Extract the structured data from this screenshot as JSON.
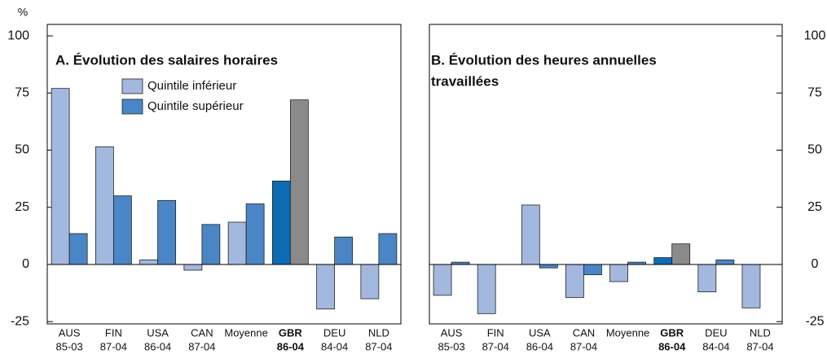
{
  "chart_data": [
    {
      "type": "bar",
      "title": [
        "A. Évolution des salaires horaires"
      ],
      "y_label": "%",
      "axis_side": "left",
      "legend": true,
      "categories": [
        "AUS",
        "FIN",
        "USA",
        "CAN",
        "Moyenne",
        "GBR",
        "DEU",
        "NLD"
      ],
      "periods": [
        "85-03",
        "87-04",
        "86-04",
        "87-04",
        null,
        "86-04",
        "84-04",
        "87-04"
      ],
      "highlight": {
        "category": "GBR",
        "colors": [
          "#0d6bb3",
          "#8a8a8a"
        ]
      },
      "series": [
        {
          "name": "Quintile inférieur",
          "color": "#a3b8de",
          "values": [
            77,
            51.5,
            2,
            -2.5,
            18.5,
            36.5,
            -19.5,
            -15
          ]
        },
        {
          "name": "Quintile supérieur",
          "color": "#4a86c6",
          "values": [
            13.5,
            30,
            28,
            17.5,
            26.5,
            72,
            12,
            13.5
          ]
        }
      ],
      "ylim": [
        -26,
        105
      ],
      "yticks": [
        -25,
        0,
        25,
        50,
        75,
        100
      ]
    },
    {
      "type": "bar",
      "title": [
        "B. Évolution des heures annuelles",
        "travaillées"
      ],
      "axis_side": "right",
      "legend": false,
      "categories": [
        "AUS",
        "FIN",
        "USA",
        "CAN",
        "Moyenne",
        "GBR",
        "DEU",
        "NLD"
      ],
      "periods": [
        "85-03",
        "87-04",
        "86-04",
        "87-04",
        null,
        "86-04",
        "84-04",
        "87-04"
      ],
      "highlight": {
        "category": "GBR",
        "colors": [
          "#0d6bb3",
          "#8a8a8a"
        ]
      },
      "series": [
        {
          "color": "#a3b8de",
          "values": [
            -13.5,
            -21.5,
            26,
            -14.5,
            -7.5,
            3,
            -12,
            -19
          ]
        },
        {
          "color": "#4a86c6",
          "values": [
            1,
            0,
            -1.5,
            -4.5,
            1,
            9,
            2,
            0
          ]
        }
      ],
      "ylim": [
        -26,
        105
      ],
      "yticks": [
        -25,
        0,
        25,
        50,
        75,
        100
      ]
    }
  ]
}
